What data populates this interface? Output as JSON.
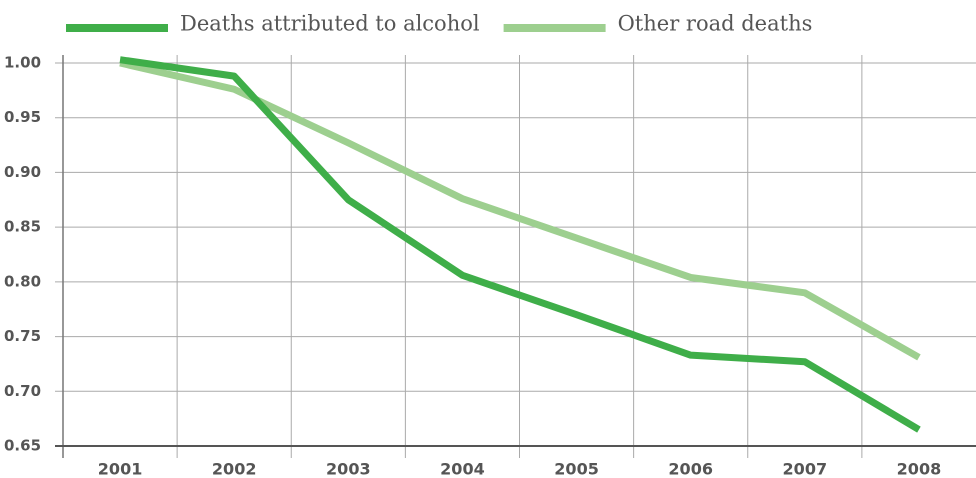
{
  "chart_data": {
    "type": "line",
    "categories": [
      "2001",
      "2002",
      "2003",
      "2004",
      "2005",
      "2006",
      "2007",
      "2008"
    ],
    "series": [
      {
        "name": "Deaths attributed to alcohol",
        "color": "#3fae49",
        "values": [
          1.003,
          0.988,
          0.875,
          0.806,
          0.77,
          0.733,
          0.727,
          0.665
        ]
      },
      {
        "name": "Other road deaths",
        "color": "#9dcf8f",
        "values": [
          1.0,
          0.976,
          0.927,
          0.876,
          0.84,
          0.804,
          0.79,
          0.731
        ]
      }
    ],
    "ylim": [
      0.65,
      1.0
    ],
    "yticks": [
      {
        "value": 0.65,
        "label": "0.65"
      },
      {
        "value": 0.7,
        "label": "0.70"
      },
      {
        "value": 0.75,
        "label": "0.75"
      },
      {
        "value": 0.8,
        "label": "0.80"
      },
      {
        "value": 0.85,
        "label": "0.85"
      },
      {
        "value": 0.9,
        "label": "0.90"
      },
      {
        "value": 0.95,
        "label": "0.95"
      },
      {
        "value": 1.0,
        "label": "1.00"
      }
    ],
    "grid": true
  }
}
